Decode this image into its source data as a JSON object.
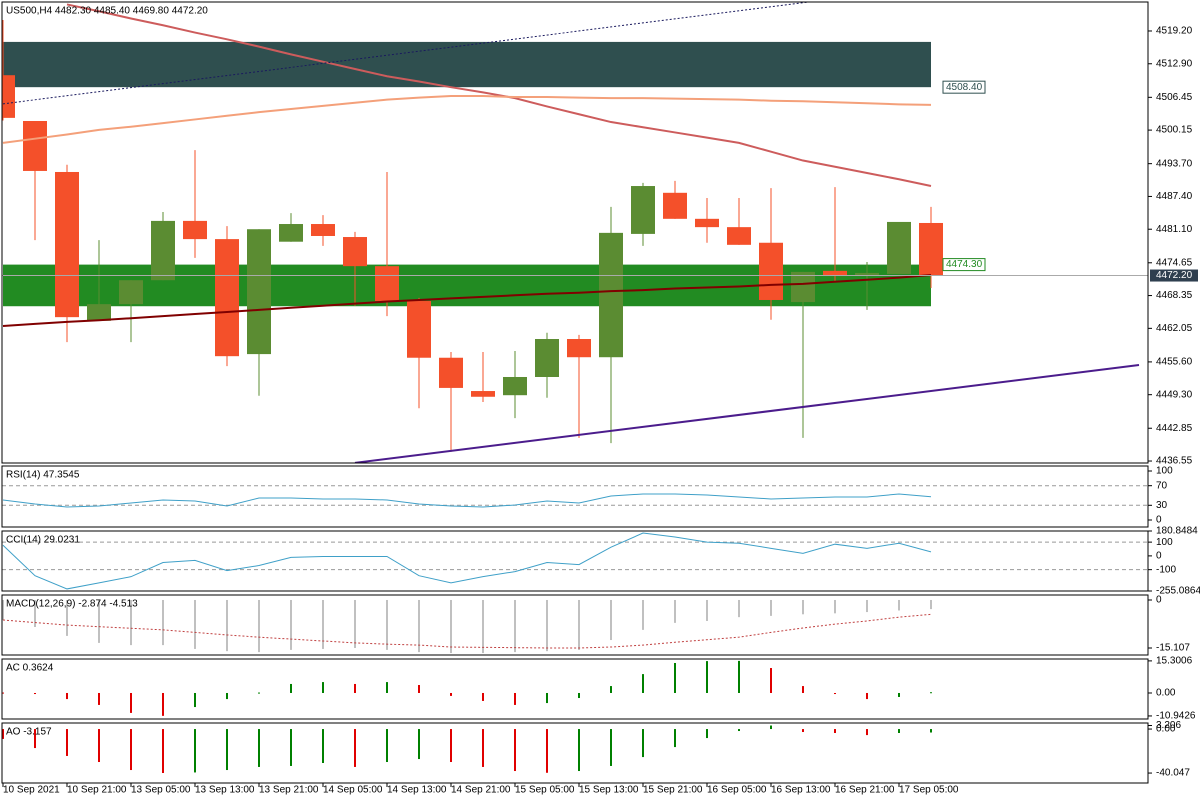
{
  "chart_data": [
    {
      "type": "candlestick",
      "title": "US500,H4  4482.30 4485.40 4469.80 4472.20",
      "categories": [
        "10 Sep 2021",
        null,
        "10 Sep 21:00",
        null,
        "13 Sep 05:00",
        null,
        "13 Sep 13:00",
        null,
        "13 Sep 21:00",
        null,
        "14 Sep 05:00",
        null,
        "14 Sep 13:00",
        null,
        "14 Sep 21:00",
        null,
        "15 Sep 05:00",
        null,
        "15 Sep 13:00",
        null,
        "15 Sep 21:00",
        null,
        "16 Sep 05:00",
        null,
        "16 Sep 13:00",
        null,
        "16 Sep 21:00",
        null,
        "17 Sep 05:00",
        null
      ],
      "open": [
        4510.7,
        4501.9,
        4492.1,
        4463.5,
        4466.7,
        4471.3,
        4482.7,
        4479.2,
        4457.1,
        4478.7,
        4482.1,
        4479.6,
        4474.0,
        4467.3,
        4456.4,
        4450.0,
        4449.2,
        4452.7,
        4460.0,
        4456.5,
        4480.2,
        4488.1,
        4483.1,
        4481.5,
        4478.5,
        4467.1,
        4473.1,
        4472.1,
        4472.5,
        4482.3
      ],
      "high": [
        4521.3,
        4501.9,
        4493.5,
        4479.0,
        4471.3,
        4484.4,
        4496.3,
        4481.7,
        4481.1,
        4484.2,
        4483.8,
        4480.6,
        4492.1,
        4467.9,
        4457.5,
        4457.5,
        4457.7,
        4461.2,
        4460.8,
        4485.4,
        4490.0,
        4490.4,
        4487.1,
        4487.1,
        4489.0,
        4472.9,
        4489.2,
        4474.8,
        4482.5,
        4485.4
      ],
      "low": [
        4502.0,
        4479.0,
        4459.4,
        4463.5,
        4459.4,
        4471.3,
        4475.6,
        4454.8,
        4449.1,
        4478.7,
        4477.9,
        4466.4,
        4464.4,
        4446.7,
        4438.3,
        4447.9,
        4444.8,
        4448.7,
        4441.0,
        4440.0,
        4477.9,
        4483.1,
        4478.5,
        4478.1,
        4463.7,
        4441.0,
        4471.0,
        4465.6,
        4472.5,
        4469.8
      ],
      "close": [
        4502.5,
        4492.3,
        4464.2,
        4466.7,
        4471.3,
        4482.7,
        4479.2,
        4456.7,
        4481.1,
        4482.1,
        4479.8,
        4474.0,
        4467.3,
        4456.4,
        4450.6,
        4448.9,
        4452.7,
        4460.0,
        4456.5,
        4480.4,
        4489.4,
        4483.1,
        4481.5,
        4478.1,
        4467.5,
        4472.9,
        4472.1,
        4472.7,
        4482.5,
        4472.2
      ],
      "up_color": "#5b8c32",
      "down_color": "#f4502a",
      "lines": [
        {
          "color": "#cd5c5c",
          "values": [
            null,
            null,
            4524.3,
            4523.0,
            4521.6,
            4520.3,
            4518.9,
            4517.6,
            4516.2,
            4514.7,
            4513.3,
            4511.9,
            4510.5,
            4509.5,
            4508.4,
            4507.4,
            4506.3,
            4504.7,
            4503.2,
            4501.7,
            4500.7,
            4499.7,
            4498.7,
            4497.7,
            4496.0,
            4494.3,
            4493.1,
            4491.9,
            4490.7,
            4489.4
          ]
        },
        {
          "color": "#f4a07a",
          "values": [
            4497.7,
            4498.5,
            4499.3,
            4500.2,
            4500.8,
            4501.5,
            4502.2,
            4502.9,
            4503.6,
            4504.2,
            4504.8,
            4505.4,
            4506.0,
            4506.4,
            4506.7,
            4506.7,
            4506.5,
            4506.5,
            4506.4,
            4506.3,
            4506.3,
            4506.2,
            4506.1,
            4506.0,
            4505.8,
            4505.7,
            4505.5,
            4505.3,
            4505.1,
            4505.0
          ]
        },
        {
          "color": "#800000",
          "values": [
            4462.5,
            4462.9,
            4463.3,
            4463.6,
            4464.0,
            4464.4,
            4464.8,
            4465.2,
            4465.6,
            4466.0,
            4466.4,
            4466.8,
            4467.2,
            4467.5,
            4467.8,
            4468.1,
            4468.4,
            4468.7,
            4468.9,
            4469.2,
            4469.4,
            4469.7,
            4469.9,
            4470.1,
            4470.4,
            4470.6,
            4471.0,
            4471.4,
            4471.8,
            4472.3
          ]
        }
      ],
      "zones": [
        {
          "high": 4517.1,
          "low": 4508.4,
          "color": "#2f4f4f"
        },
        {
          "high": 4474.3,
          "low": 4466.3,
          "color": "#228b22"
        }
      ],
      "trendlines": [
        {
          "x": [
            0,
            25.2
          ],
          "y": [
            4505.2,
            4524.8
          ],
          "color": "#1a1a5e",
          "dashed": true
        },
        {
          "x": [
            11,
            35.5
          ],
          "y": [
            4436.2,
            4455.0
          ],
          "color": "#4b1c8c",
          "dashed": false
        }
      ],
      "price_labels": [
        {
          "value": 4508.4,
          "label": "4508.40",
          "color": "#2f4f4f",
          "current": false
        },
        {
          "value": 4474.3,
          "label": "4474.30",
          "color": "#228b22",
          "current": false
        },
        {
          "value": 4472.2,
          "label": "4472.20",
          "color": "#2f3f4f",
          "current": true
        }
      ],
      "ylim": [
        4436.17,
        4524.77
      ],
      "yticks": [
        {
          "value": 4519.2,
          "label": "4519.20"
        },
        {
          "value": 4512.9,
          "label": "4512.90"
        },
        {
          "value": 4506.45,
          "label": "4506.45"
        },
        {
          "value": 4500.15,
          "label": "4500.15"
        },
        {
          "value": 4493.7,
          "label": "4493.70"
        },
        {
          "value": 4487.4,
          "label": "4487.40"
        },
        {
          "value": 4481.1,
          "label": "4481.10"
        },
        {
          "value": 4474.65,
          "label": "4474.65"
        },
        {
          "value": 4468.35,
          "label": "4468.35"
        },
        {
          "value": 4462.05,
          "label": "4462.05"
        },
        {
          "value": 4455.6,
          "label": "4455.60"
        },
        {
          "value": 4449.3,
          "label": "4449.30"
        },
        {
          "value": 4442.85,
          "label": "4442.85"
        },
        {
          "value": 4436.55,
          "label": "4436.55"
        }
      ]
    },
    {
      "type": "line",
      "title": "RSI(14) 47.3545",
      "color": "#3fa0c8",
      "values": [
        40.8,
        32.7,
        26.5,
        28.6,
        34.7,
        40.8,
        38.8,
        28.6,
        44.9,
        44.9,
        42.9,
        42.9,
        40.8,
        32.7,
        28.6,
        26.5,
        30.6,
        38.8,
        34.7,
        49.0,
        53.1,
        53.1,
        51.0,
        46.9,
        42.9,
        44.9,
        46.9,
        46.9,
        53.1,
        47.35
      ],
      "levels": [
        70,
        30
      ],
      "ylim": [
        -14.3,
        110.2
      ],
      "yticks": [
        100,
        70,
        30,
        0
      ]
    },
    {
      "type": "line",
      "title": "CCI(14) 29.0231",
      "color": "#3fa0c8",
      "values": [
        77.5,
        -144,
        -240,
        -196,
        -151,
        -48,
        -33,
        -107,
        -70,
        -11,
        -4,
        -4,
        -4,
        -144,
        -196,
        -151,
        -114,
        -48,
        -63,
        63,
        166,
        137,
        100,
        92,
        55,
        18,
        85,
        55,
        92,
        29.02
      ],
      "levels": [
        100,
        -100
      ],
      "ylim": [
        -255.0864,
        180.8484
      ],
      "yticks": [
        {
          "value": 180.8484,
          "label": "180.8484"
        },
        100,
        0,
        -100,
        {
          "value": -255.0864,
          "label": "-255.0864"
        }
      ]
    },
    {
      "type": "bar",
      "title": "MACD(12,26,9) -2.874 -4.513",
      "color": "#c0c0c0",
      "values": [
        -6.3,
        -8.5,
        -11.3,
        -13.5,
        -14.2,
        -14.2,
        -15.4,
        -16.1,
        -16.4,
        -15.7,
        -15.4,
        -15.1,
        -15.7,
        -16.4,
        -16.7,
        -16.7,
        -16.4,
        -16.1,
        -15.7,
        -12.6,
        -9.4,
        -7.2,
        -6.6,
        -5.4,
        -5.0,
        -4.5,
        -4.2,
        -3.8,
        -3.3,
        -2.874
      ],
      "signal": {
        "color": "#c04040",
        "values": [
          -6.3,
          -7.1,
          -7.9,
          -8.4,
          -8.9,
          -9.4,
          -10.2,
          -11.0,
          -11.7,
          -12.3,
          -12.9,
          -13.5,
          -13.9,
          -14.2,
          -14.8,
          -14.9,
          -15.0,
          -15.1,
          -15.1,
          -14.8,
          -14.2,
          -13.3,
          -12.5,
          -11.7,
          -10.2,
          -8.8,
          -7.6,
          -6.6,
          -5.4,
          -4.513
        ]
      },
      "ylim": [
        -17.31,
        1.57
      ],
      "yticks": [
        0,
        {
          "value": -15.107,
          "label": "-15.107"
        }
      ]
    },
    {
      "type": "bar",
      "title": "AC 0.3624",
      "up_color": "#008000",
      "down_color": "#e00000",
      "values": [
        0.2,
        -0.5,
        -2.9,
        -5.7,
        -9.5,
        -10.9,
        -6.7,
        -2.9,
        0.2,
        4.3,
        5.2,
        4.3,
        5.2,
        3.8,
        -1.4,
        -3.8,
        -5.7,
        -4.8,
        -2.4,
        3.3,
        9.0,
        14.3,
        15.2,
        15.3,
        11.9,
        3.3,
        -0.5,
        -2.9,
        -1.9,
        0.3624
      ],
      "ylim": [
        -12.4,
        16.2
      ],
      "yticks": [
        {
          "value": 15.3006,
          "label": "15.3006"
        },
        {
          "value": 0,
          "label": "0.00"
        },
        {
          "value": -10.9426,
          "label": "-10.9426"
        }
      ]
    },
    {
      "type": "bar",
      "title": "AO -3.157",
      "up_color": "#008000",
      "down_color": "#e00000",
      "values": [
        -9.0,
        -17.3,
        -24.5,
        -30.0,
        -37.3,
        -40.0,
        -39.5,
        -37.3,
        -34.5,
        -33.6,
        -30.9,
        -34.5,
        -30.0,
        -27.3,
        -30.0,
        -34.5,
        -38.2,
        -39.8,
        -38.2,
        -33.6,
        -25.5,
        -16.4,
        -8.2,
        -1.8,
        3.2,
        -2.7,
        -3.6,
        -5.5,
        -3.6,
        -3.157
      ],
      "ylim": [
        -49.1,
        5.5
      ],
      "yticks": [
        {
          "value": 3.206,
          "label": "3.206"
        },
        {
          "value": 0,
          "label": "0.00"
        },
        {
          "value": -40.047,
          "label": "-40.047"
        }
      ]
    }
  ]
}
